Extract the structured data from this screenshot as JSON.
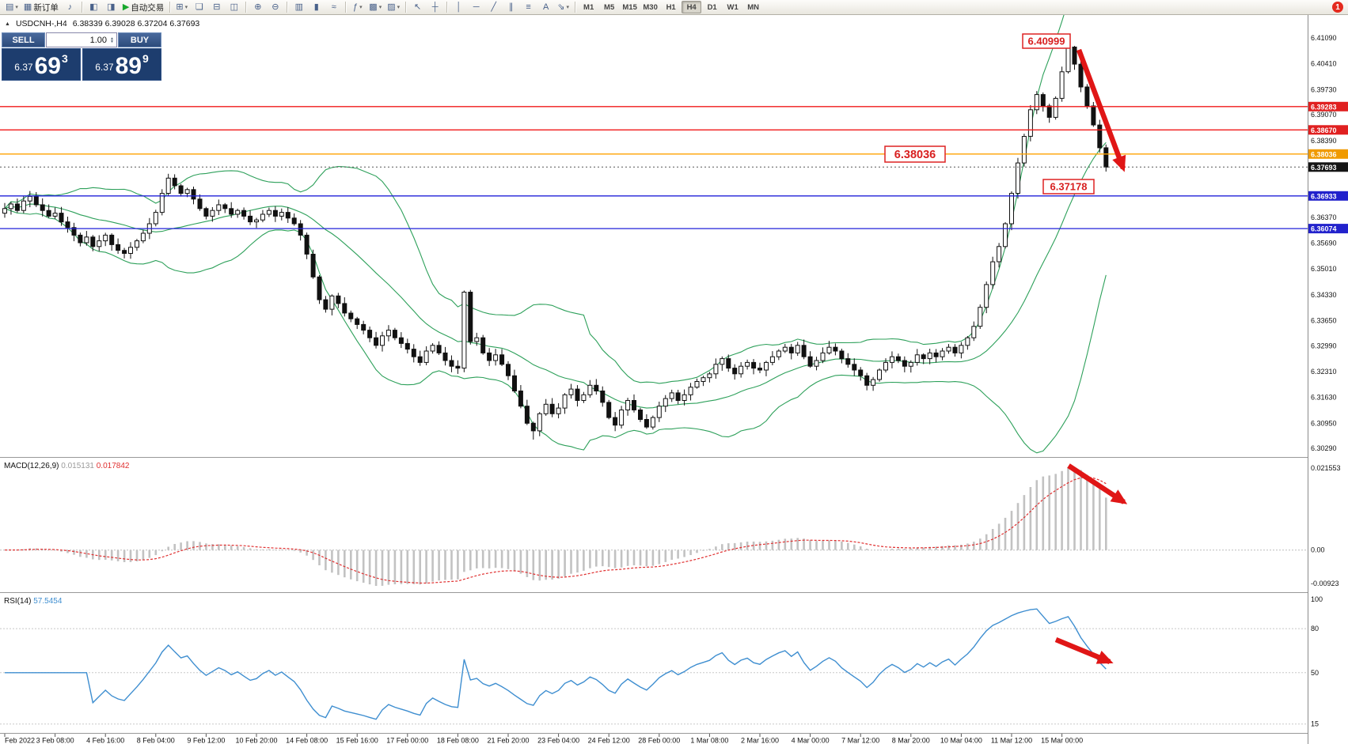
{
  "icons": {
    "triangle_up": "▲",
    "caret_down": "▾",
    "spin_up": "▲",
    "spin_down": "▼"
  },
  "colors": {
    "bb_green": "#2da05a",
    "level_red": "#f01818",
    "level_orange": "#ffa200",
    "level_blue": "#2121d8",
    "tag_red": "#e02020",
    "tag_orange": "#f09a00",
    "tag_black": "#151515",
    "tag_blue": "#2222cc",
    "macd_hist": "#c2c2c2",
    "macd_hist_label": "#9a9a9a",
    "macd_signal": "#e03030",
    "rsi_blue": "#3e8ed0",
    "arrow_red": "#e01616"
  },
  "toolbar": {
    "groups": [
      {
        "buttons": [
          {
            "name": "new-chart",
            "glyph": "▤",
            "caret": true
          },
          {
            "name": "new-order",
            "glyph": "▦",
            "label": "新订单"
          },
          {
            "name": "alert",
            "glyph": "♪"
          }
        ]
      },
      {
        "buttons": [
          {
            "name": "market-watch",
            "glyph": "◧"
          },
          {
            "name": "data-window",
            "glyph": "◨"
          },
          {
            "name": "autotrading",
            "glyph": "▶",
            "color": "#18a82d",
            "label": "自动交易"
          }
        ]
      },
      {
        "buttons": [
          {
            "name": "new-window",
            "glyph": "⊞",
            "caret": true
          },
          {
            "name": "window-cascade",
            "glyph": "❏"
          },
          {
            "name": "window-tile-horizontal",
            "glyph": "⊟"
          },
          {
            "name": "window-tile-vertical",
            "glyph": "◫"
          }
        ]
      },
      {
        "buttons": [
          {
            "name": "zoom-in",
            "glyph": "⊕"
          },
          {
            "name": "zoom-out",
            "glyph": "⊖"
          }
        ]
      },
      {
        "buttons": [
          {
            "name": "bar-chart",
            "glyph": "▥"
          },
          {
            "name": "candlestick-chart",
            "glyph": "▮"
          },
          {
            "name": "line-chart",
            "glyph": "≈"
          }
        ]
      },
      {
        "buttons": [
          {
            "name": "indicators",
            "glyph": "ƒ",
            "caret": true
          },
          {
            "name": "periods",
            "glyph": "▩",
            "caret": true
          },
          {
            "name": "templates",
            "glyph": "▨",
            "caret": true
          }
        ]
      },
      {
        "buttons": [
          {
            "name": "cursor",
            "glyph": "↖"
          },
          {
            "name": "crosshair",
            "glyph": "┼"
          }
        ]
      },
      {
        "buttons": [
          {
            "name": "vertical-line",
            "glyph": "│"
          },
          {
            "name": "horizontal-line",
            "glyph": "─"
          },
          {
            "name": "trendline",
            "glyph": "╱"
          },
          {
            "name": "equidistant-channel",
            "glyph": "∥"
          },
          {
            "name": "fibonacci",
            "glyph": "≡"
          },
          {
            "name": "text-tool",
            "glyph": "A"
          },
          {
            "name": "arrows-tool",
            "glyph": "⇘",
            "caret": true
          }
        ]
      }
    ],
    "timeframes": [
      "M1",
      "M5",
      "M15",
      "M30",
      "H1",
      "H4",
      "D1",
      "W1",
      "MN"
    ],
    "active_timeframe": "H4",
    "notification_count": "1"
  },
  "chart": {
    "symbol_period": "USDCNH-,H4",
    "ohlc": "6.38339 6.39028 6.37204 6.37693",
    "current_price": "6.37693",
    "annotations": [
      "6.40999",
      "6.38036",
      "6.37178"
    ]
  },
  "trade_panel": {
    "sell_label": "SELL",
    "buy_label": "BUY",
    "volume": "1.00",
    "sell_price": {
      "small": "6.37",
      "big": "69",
      "sup": "3"
    },
    "buy_price": {
      "small": "6.37",
      "big": "89",
      "sup": "9"
    }
  },
  "chart_data": [
    {
      "type": "candlestick",
      "symbol": "USDCNH-",
      "timeframe": "H4",
      "indicator_overlay": "Bollinger Bands (20,2)",
      "price_range": [
        6.3029,
        6.4109
      ],
      "bars_per_label": 8,
      "x_labels": [
        "Feb 2022",
        "3 Feb 08:00",
        "4 Feb 16:00",
        "8 Feb 04:00",
        "9 Feb 12:00",
        "10 Feb 20:00",
        "14 Feb 08:00",
        "15 Feb 16:00",
        "17 Feb 00:00",
        "18 Feb 08:00",
        "21 Feb 20:00",
        "23 Feb 04:00",
        "24 Feb 12:00",
        "28 Feb 00:00",
        "1 Mar 08:00",
        "2 Mar 16:00",
        "4 Mar 00:00",
        "7 Mar 12:00",
        "8 Mar 20:00",
        "10 Mar 04:00",
        "11 Mar 12:00",
        "15 Mar 00:00"
      ],
      "closes": [
        6.366,
        6.3672,
        6.3655,
        6.368,
        6.3692,
        6.367,
        6.3655,
        6.364,
        6.3648,
        6.3625,
        6.361,
        6.359,
        6.357,
        6.3585,
        6.356,
        6.3575,
        6.359,
        6.3565,
        6.355,
        6.3542,
        6.3558,
        6.3575,
        6.3595,
        6.362,
        6.365,
        6.37,
        6.374,
        6.372,
        6.37,
        6.371,
        6.3685,
        6.366,
        6.364,
        6.3655,
        6.367,
        6.366,
        6.3645,
        6.3655,
        6.364,
        6.3625,
        6.363,
        6.3645,
        6.3655,
        6.364,
        6.365,
        6.3635,
        6.362,
        6.359,
        6.354,
        6.348,
        6.342,
        6.3395,
        6.343,
        6.341,
        6.3385,
        6.337,
        6.3355,
        6.334,
        6.332,
        6.33,
        6.3325,
        6.334,
        6.332,
        6.3305,
        6.329,
        6.327,
        6.3255,
        6.3285,
        6.33,
        6.328,
        6.326,
        6.3245,
        6.324,
        6.344,
        6.331,
        6.332,
        6.328,
        6.326,
        6.3275,
        6.325,
        6.322,
        6.318,
        6.314,
        6.3095,
        6.3075,
        6.312,
        6.3145,
        6.312,
        6.3135,
        6.317,
        6.3185,
        6.3155,
        6.317,
        6.3195,
        6.318,
        6.315,
        6.311,
        6.309,
        6.313,
        6.3155,
        6.313,
        6.3105,
        6.3085,
        6.311,
        6.314,
        6.316,
        6.3175,
        6.3155,
        6.317,
        6.319,
        6.3205,
        6.3215,
        6.3225,
        6.325,
        6.3265,
        6.324,
        6.3225,
        6.3245,
        6.3255,
        6.324,
        6.3235,
        6.3255,
        6.327,
        6.3285,
        6.3295,
        6.328,
        6.33,
        6.327,
        6.3245,
        6.326,
        6.328,
        6.3295,
        6.3285,
        6.3265,
        6.325,
        6.3235,
        6.322,
        6.3195,
        6.321,
        6.3235,
        6.3255,
        6.327,
        6.326,
        6.3245,
        6.3255,
        6.3275,
        6.3265,
        6.328,
        6.327,
        6.3285,
        6.3295,
        6.328,
        6.33,
        6.332,
        6.335,
        6.34,
        6.346,
        6.352,
        6.356,
        6.362,
        6.37,
        6.378,
        6.385,
        6.392,
        6.396,
        6.393,
        6.39,
        6.395,
        6.402,
        6.4085,
        6.404,
        6.398,
        6.393,
        6.388,
        6.382,
        6.37693
      ],
      "high_marker": 6.40999,
      "y_axis": [
        {
          "t": "6.41090",
          "p": 6.4109
        },
        {
          "t": "6.40410",
          "p": 6.4041
        },
        {
          "t": "6.39730",
          "p": 6.3973
        },
        {
          "t": "6.39283",
          "p": 6.39283,
          "tag": "#e02020"
        },
        {
          "t": "6.39070",
          "p": 6.3907
        },
        {
          "t": "6.38670",
          "p": 6.3867,
          "tag": "#e02020"
        },
        {
          "t": "6.38390",
          "p": 6.3839
        },
        {
          "t": "6.38036",
          "p": 6.38036,
          "tag": "#f09a00"
        },
        {
          "t": "6.37693",
          "p": 6.37693,
          "tag": "#151515"
        },
        {
          "t": "6.36933",
          "p": 6.36933,
          "tag": "#2222cc"
        },
        {
          "t": "6.36370",
          "p": 6.3637
        },
        {
          "t": "6.36074",
          "p": 6.36074,
          "tag": "#2222cc"
        },
        {
          "t": "6.35690",
          "p": 6.3569
        },
        {
          "t": "6.35010",
          "p": 6.3501
        },
        {
          "t": "6.34330",
          "p": 6.3433
        },
        {
          "t": "6.33650",
          "p": 6.3365
        },
        {
          "t": "6.32990",
          "p": 6.3299
        },
        {
          "t": "6.32310",
          "p": 6.3231
        },
        {
          "t": "6.31630",
          "p": 6.3163
        },
        {
          "t": "6.30950",
          "p": 6.3095
        },
        {
          "t": "6.30290",
          "p": 6.3029
        }
      ],
      "levels": [
        {
          "price": 6.39283,
          "color": "#f01818"
        },
        {
          "price": 6.3867,
          "color": "#f01818"
        },
        {
          "price": 6.38036,
          "color": "#ffa200"
        },
        {
          "price": 6.36933,
          "color": "#2121d8"
        },
        {
          "price": 6.36074,
          "color": "#2121d8"
        }
      ],
      "current_price": 6.37693
    },
    {
      "type": "macd",
      "label": "MACD(12,26,9)",
      "values": [
        "0.015131",
        "0.017842"
      ],
      "axis": [
        "0.021553",
        "0.00",
        "-0.00923"
      ]
    },
    {
      "type": "rsi",
      "label": "RSI(14)",
      "value": "57.5454",
      "axis": [
        "100",
        "80",
        "50",
        "15"
      ],
      "levels": [
        80,
        50,
        15
      ]
    }
  ]
}
